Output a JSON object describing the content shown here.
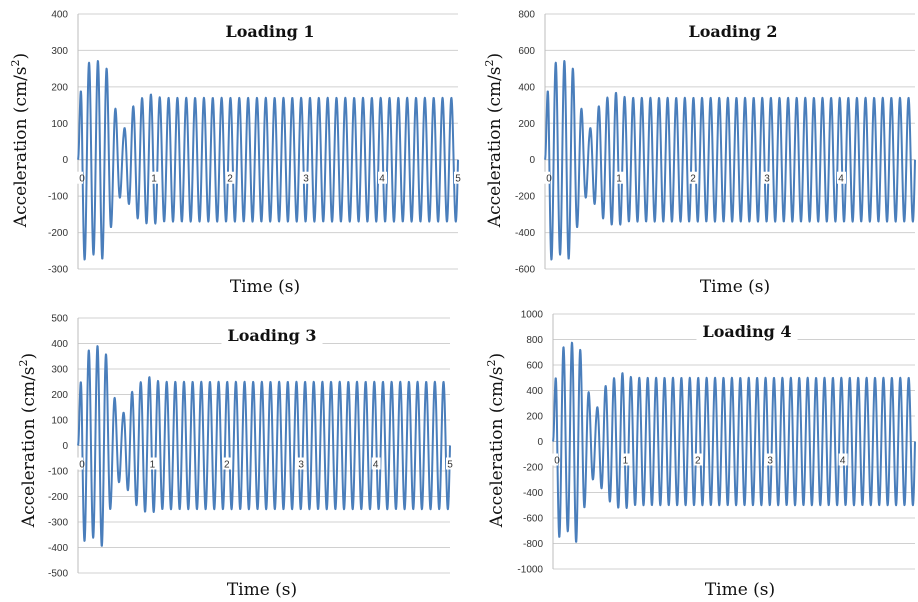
{
  "chart_data": [
    {
      "type": "line",
      "title": "Loading 1",
      "xlabel": "Time (s)",
      "ylabel_text": "Acceleration (cm/s",
      "ylabel_sup": "2",
      "ylabel_close": ")",
      "xlim": [
        0,
        5
      ],
      "ylim": [
        -300,
        400
      ],
      "xticks": [
        0,
        1,
        2,
        3,
        4,
        5
      ],
      "xtick_labels": [
        "0",
        "1",
        "2",
        "3",
        "4",
        "5"
      ],
      "yticks": [
        -300,
        -200,
        -100,
        0,
        100,
        200,
        300,
        400
      ],
      "ytick_labels": [
        "-300",
        "-200",
        "-100",
        "0",
        "100",
        "200",
        "300",
        "400"
      ],
      "series": [
        {
          "color": "#4a7ebb",
          "frequency_hz": 8.6,
          "amplitude_envelope": {
            "t": [
              0,
              0.05,
              0.12,
              0.2,
              0.28,
              0.36,
              0.44,
              0.52,
              0.6,
              0.7,
              0.8,
              0.95,
              1.1,
              5
            ],
            "a": [
              0,
              280,
              270,
              260,
              275,
              270,
              180,
              120,
              80,
              140,
              165,
              180,
              170,
              170
            ]
          }
        }
      ]
    },
    {
      "type": "line",
      "title": "Loading 2",
      "xlabel": "Time (s)",
      "ylabel_text": "Acceleration (cm/s",
      "ylabel_sup": "2",
      "ylabel_close": ")",
      "xlim": [
        0,
        5
      ],
      "ylim": [
        -600,
        800
      ],
      "xticks": [
        0,
        1,
        2,
        3,
        4
      ],
      "xtick_labels": [
        "0",
        "1",
        "2",
        "3",
        "4"
      ],
      "yticks": [
        -600,
        -400,
        -200,
        0,
        200,
        400,
        600,
        800
      ],
      "ytick_labels": [
        "-600",
        "-400",
        "-200",
        "0",
        "200",
        "400",
        "600",
        "800"
      ],
      "series": [
        {
          "color": "#4a7ebb",
          "frequency_hz": 8.6,
          "amplitude_envelope": {
            "t": [
              0,
              0.05,
              0.12,
              0.2,
              0.28,
              0.36,
              0.44,
              0.52,
              0.6,
              0.7,
              0.8,
              0.95,
              1.1,
              5
            ],
            "a": [
              0,
              560,
              540,
              520,
              550,
              540,
              360,
              240,
              160,
              280,
              330,
              370,
              340,
              340
            ]
          }
        }
      ]
    },
    {
      "type": "line",
      "title": "Loading 3",
      "xlabel": "Time (s)",
      "ylabel_text": "Acceleration (cm/s",
      "ylabel_sup": "2",
      "ylabel_close": ")",
      "xlim": [
        0,
        5
      ],
      "ylim": [
        -500,
        500
      ],
      "xticks": [
        0,
        1,
        2,
        3,
        4,
        5
      ],
      "xtick_labels": [
        "0",
        "1",
        "2",
        "3",
        "4",
        "5"
      ],
      "yticks": [
        -500,
        -400,
        -300,
        -200,
        -100,
        0,
        100,
        200,
        300,
        400,
        500
      ],
      "ytick_labels": [
        "-500",
        "-400",
        "-300",
        "-200",
        "-100",
        "0",
        "100",
        "200",
        "300",
        "400",
        "500"
      ],
      "series": [
        {
          "color": "#4a7ebb",
          "frequency_hz": 8.6,
          "amplitude_envelope": {
            "t": [
              0,
              0.05,
              0.12,
              0.2,
              0.28,
              0.36,
              0.44,
              0.52,
              0.6,
              0.7,
              0.8,
              0.95,
              1.1,
              5
            ],
            "a": [
              0,
              370,
              380,
              360,
              400,
              390,
              240,
              160,
              120,
              200,
              240,
              270,
              250,
              250
            ]
          }
        }
      ]
    },
    {
      "type": "line",
      "title": "Loading 4",
      "xlabel": "Time (s)",
      "ylabel_text": "Acceleration (cm/s",
      "ylabel_sup": "2",
      "ylabel_close": ")",
      "xlim": [
        0,
        5
      ],
      "ylim": [
        -1000,
        1000
      ],
      "xticks": [
        0,
        1,
        2,
        3,
        4
      ],
      "xtick_labels": [
        "0",
        "1",
        "2",
        "3",
        "4"
      ],
      "yticks": [
        -1000,
        -800,
        -600,
        -400,
        -200,
        0,
        200,
        400,
        600,
        800,
        1000
      ],
      "ytick_labels": [
        "-1000",
        "-800",
        "-600",
        "-400",
        "-200",
        "0",
        "200",
        "400",
        "600",
        "800",
        "1000"
      ],
      "series": [
        {
          "color": "#4a7ebb",
          "frequency_hz": 8.6,
          "amplitude_envelope": {
            "t": [
              0,
              0.05,
              0.12,
              0.2,
              0.28,
              0.36,
              0.44,
              0.52,
              0.6,
              0.7,
              0.8,
              0.95,
              1.1,
              5
            ],
            "a": [
              0,
              740,
              760,
              700,
              800,
              780,
              500,
              330,
              250,
              420,
              480,
              540,
              500,
              500
            ]
          }
        }
      ]
    }
  ]
}
